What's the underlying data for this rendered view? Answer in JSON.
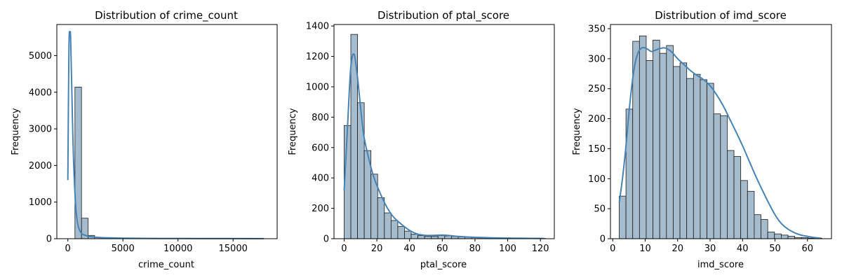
{
  "chart_data": [
    {
      "type": "bar",
      "title": "Distribution of crime_count",
      "xlabel": "crime_count",
      "ylabel": "Frequency",
      "xlim": [
        -1000,
        19000
      ],
      "ylim": [
        0,
        5850
      ],
      "xticks": [
        0,
        5000,
        10000,
        15000
      ],
      "yticks": [
        0,
        1000,
        2000,
        3000,
        4000,
        5000
      ],
      "bin_start": 50,
      "bin_width": 595,
      "values": [
        1,
        4140,
        560,
        90,
        35,
        25,
        18,
        14,
        12,
        10,
        9,
        8,
        7,
        6,
        6,
        5,
        5,
        4,
        4,
        4,
        3,
        3,
        3,
        3,
        3,
        2,
        2,
        2,
        2,
        2
      ],
      "kde": {
        "x": [
          0,
          100,
          200,
          250,
          350,
          500,
          700,
          900,
          1200,
          1600,
          2000,
          3000,
          5000,
          8000,
          12000,
          17800
        ],
        "y": [
          1600,
          5250,
          5600,
          5500,
          4200,
          2300,
          950,
          400,
          160,
          90,
          60,
          30,
          15,
          8,
          5,
          2
        ]
      }
    },
    {
      "type": "bar",
      "title": "Distribution of ptal_score",
      "xlabel": "ptal_score",
      "ylabel": "Frequency",
      "xlim": [
        -6.2,
        128.5
      ],
      "ylim": [
        0,
        1410
      ],
      "xticks": [
        0,
        20,
        40,
        60,
        80,
        100,
        120
      ],
      "yticks": [
        0,
        200,
        400,
        600,
        800,
        1000,
        1200,
        1400
      ],
      "bin_start": 0,
      "bin_width": 4.1,
      "values": [
        745,
        1345,
        895,
        580,
        425,
        270,
        170,
        120,
        80,
        50,
        30,
        20,
        15,
        15,
        20,
        18,
        15,
        12,
        10,
        8,
        6,
        5,
        5,
        4,
        3,
        3,
        3,
        3,
        2,
        2
      ],
      "kde": {
        "x": [
          0,
          2,
          4,
          6,
          8,
          10,
          12,
          15,
          18,
          22,
          26,
          30,
          35,
          40,
          45,
          50,
          55,
          60,
          65,
          70,
          80,
          90,
          100,
          110,
          122
        ],
        "y": [
          320,
          720,
          1120,
          1215,
          1080,
          870,
          680,
          530,
          410,
          300,
          210,
          145,
          95,
          55,
          30,
          22,
          22,
          24,
          20,
          15,
          9,
          6,
          4,
          3,
          2
        ]
      }
    },
    {
      "type": "bar",
      "title": "Distribution of imd_score",
      "xlabel": "imd_score",
      "ylabel": "Frequency",
      "xlim": [
        -0.7,
        67.4
      ],
      "ylim": [
        0,
        357
      ],
      "xticks": [
        0,
        10,
        20,
        30,
        40,
        50,
        60
      ],
      "yticks": [
        0,
        50,
        100,
        150,
        200,
        250,
        300,
        350
      ],
      "bin_start": 2.0,
      "bin_width": 2.08,
      "values": [
        71,
        216,
        329,
        338,
        297,
        331,
        309,
        322,
        287,
        293,
        267,
        274,
        265,
        259,
        208,
        205,
        147,
        137,
        97,
        79,
        40,
        32,
        11,
        8,
        6,
        4,
        2,
        2,
        1,
        1
      ],
      "kde": {
        "x": [
          2,
          3,
          4,
          5,
          6,
          7,
          8,
          9,
          10,
          11,
          12,
          14,
          16,
          18,
          20,
          22,
          24,
          26,
          28,
          30,
          32,
          34,
          36,
          38,
          40,
          42,
          44,
          46,
          48,
          50,
          52,
          54,
          56,
          58,
          60,
          62,
          64
        ],
        "y": [
          60,
          100,
          150,
          210,
          260,
          295,
          312,
          318,
          318,
          315,
          312,
          316,
          318,
          312,
          300,
          290,
          280,
          272,
          265,
          255,
          240,
          222,
          200,
          178,
          155,
          130,
          105,
          82,
          60,
          40,
          25,
          16,
          10,
          6,
          4,
          2,
          1
        ]
      }
    }
  ],
  "colors": {
    "bar_fill": "#a5bccf",
    "bar_edge": "#1a1a1a",
    "kde_line": "#4682b4",
    "frame": "#000000"
  }
}
